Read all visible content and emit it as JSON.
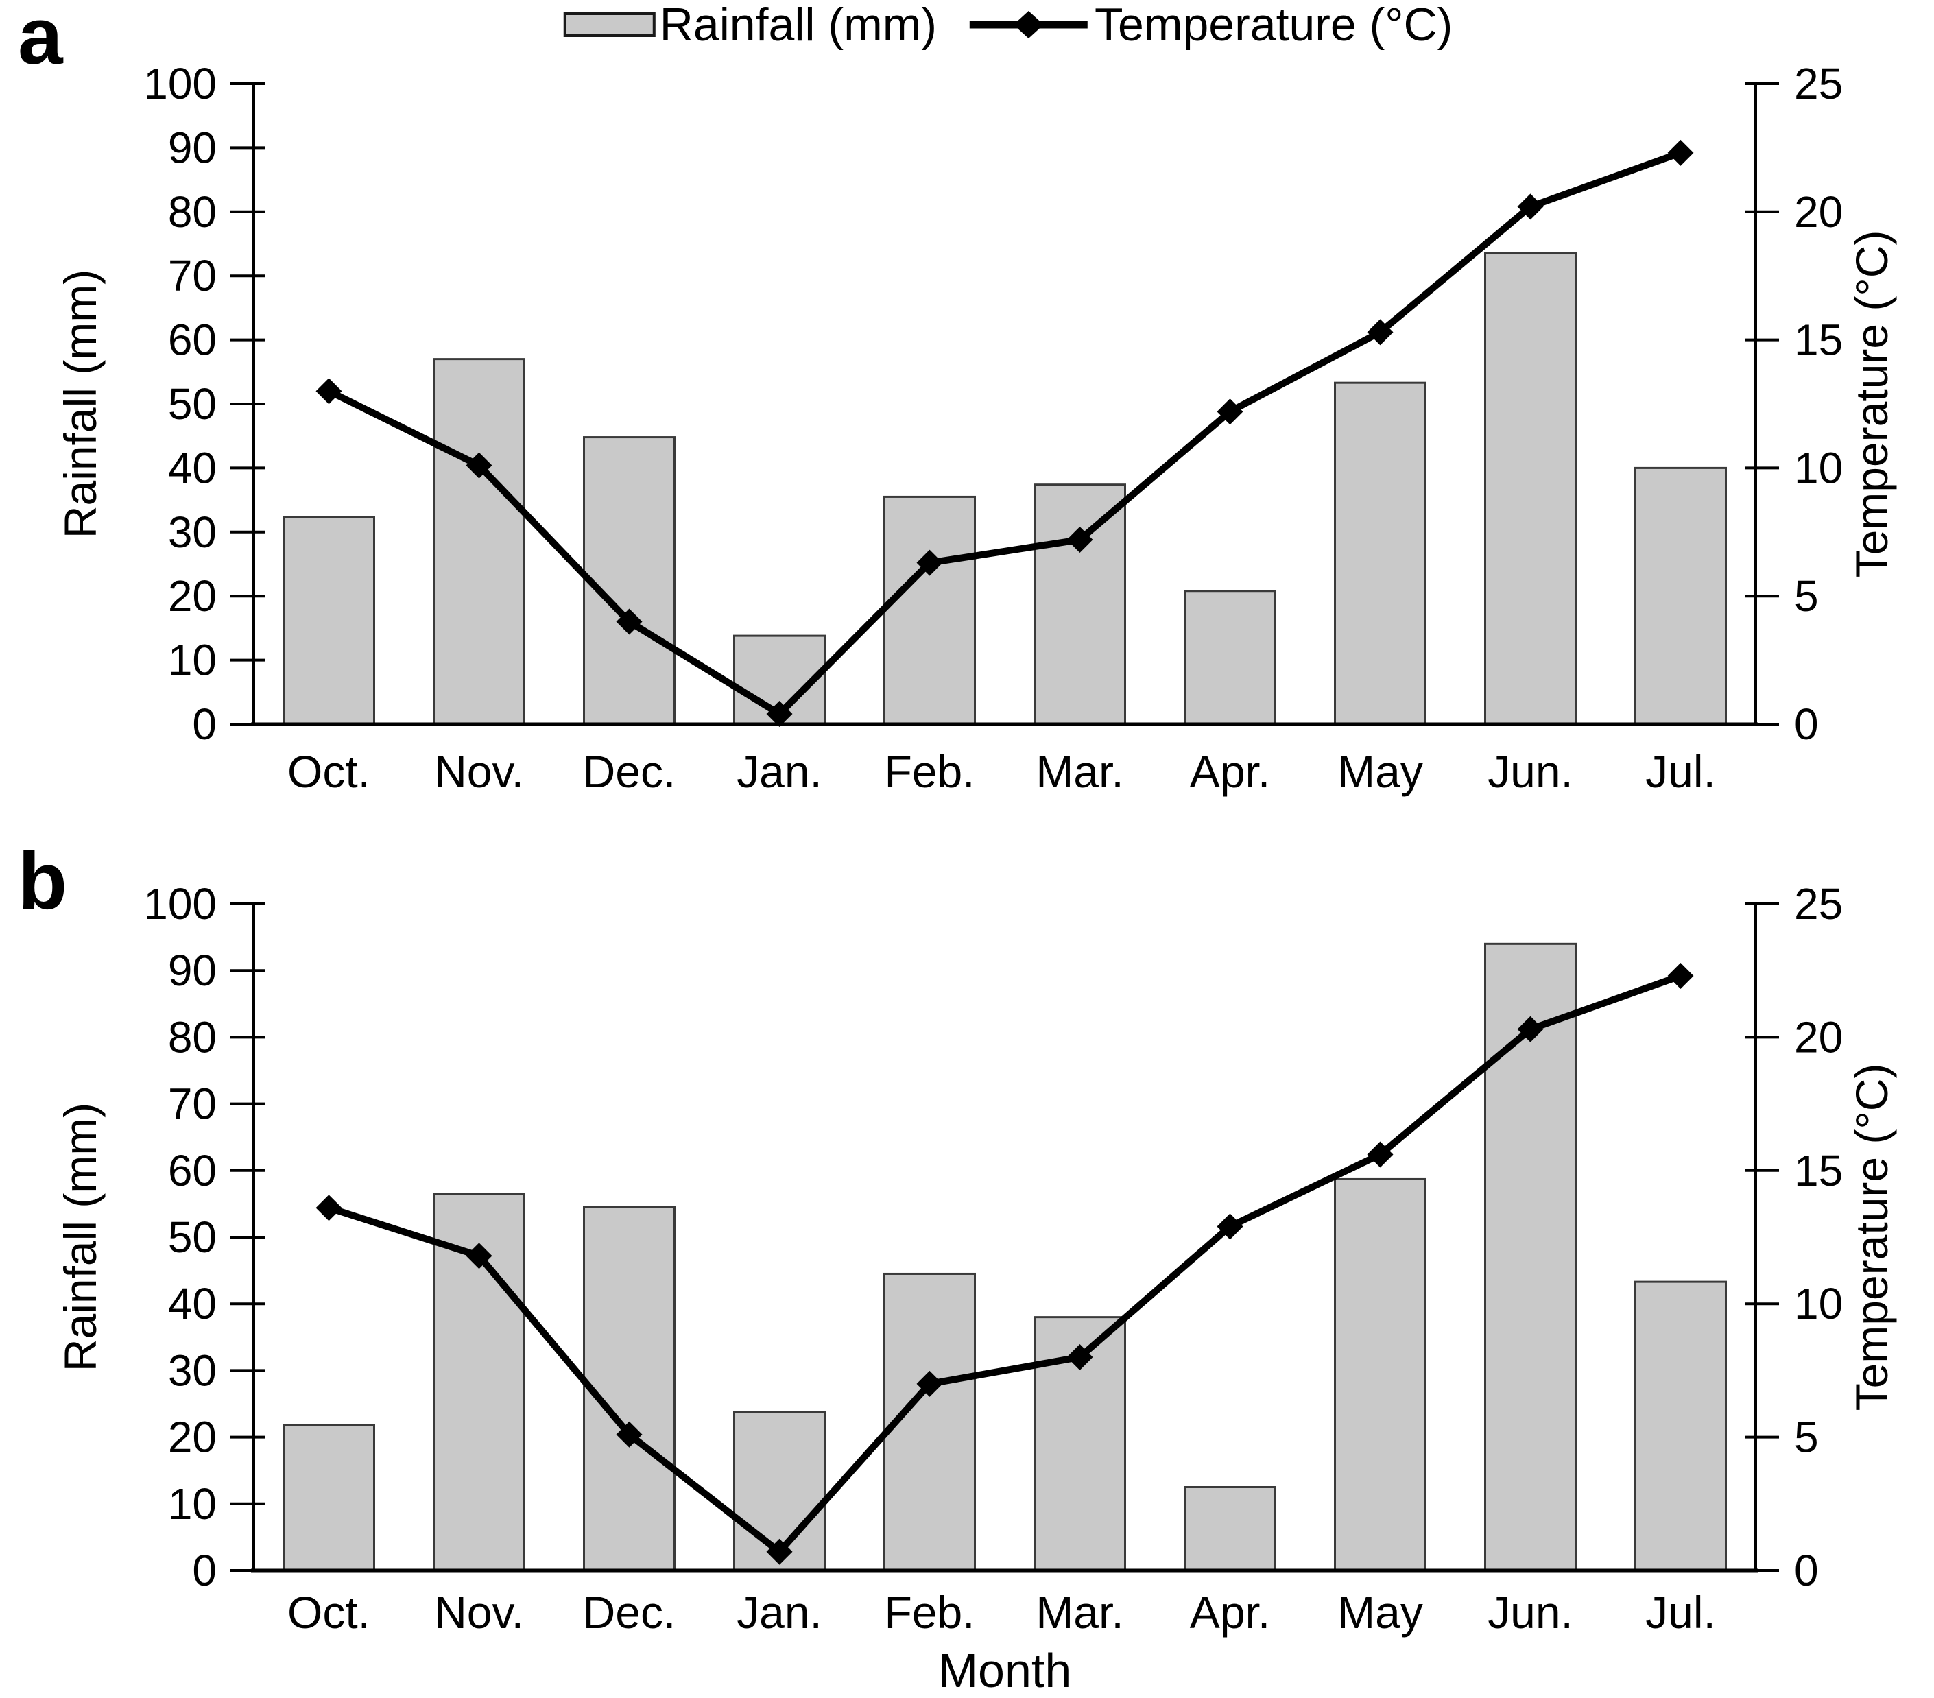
{
  "legend": {
    "rainfall_label": "Rainfall (mm)",
    "temperature_label": "Temperature (°C)"
  },
  "style": {
    "bar_fill": "#c9c9c9",
    "bar_stroke": "#3a3a3a",
    "line_color": "#000000",
    "axis_color": "#000000",
    "text_color": "#000000",
    "background": "#ffffff"
  },
  "chart_data": [
    {
      "panel": "a",
      "type": "bar",
      "subtype": "bar+line dual axis",
      "categories": [
        "Oct.",
        "Nov.",
        "Dec.",
        "Jan.",
        "Feb.",
        "Mar.",
        "Apr.",
        "May",
        "Jun.",
        "Jul."
      ],
      "series": [
        {
          "name": "Rainfall (mm)",
          "type": "bar",
          "axis": "left",
          "values": [
            32.3,
            57.0,
            44.8,
            13.8,
            35.5,
            37.4,
            20.8,
            53.3,
            73.5,
            40.0
          ]
        },
        {
          "name": "Temperature (°C)",
          "type": "line",
          "axis": "right",
          "marker": "diamond",
          "values": [
            13.0,
            10.1,
            4.0,
            0.4,
            6.3,
            7.2,
            12.2,
            15.3,
            20.2,
            22.3
          ]
        }
      ],
      "xlabel": "",
      "ylabel_left": "Rainfall (mm)",
      "ylabel_right": "Temperature (°C)",
      "ylim_left": [
        0,
        100
      ],
      "ytick_step_left": 10,
      "ylim_right": [
        0,
        25
      ],
      "ytick_step_right": 5,
      "grid": false,
      "legend_position": "top-center"
    },
    {
      "panel": "b",
      "type": "bar",
      "subtype": "bar+line dual axis",
      "categories": [
        "Oct.",
        "Nov.",
        "Dec.",
        "Jan.",
        "Feb.",
        "Mar.",
        "Apr.",
        "May",
        "Jun.",
        "Jul."
      ],
      "series": [
        {
          "name": "Rainfall (mm)",
          "type": "bar",
          "axis": "left",
          "values": [
            21.8,
            56.5,
            54.5,
            23.8,
            44.5,
            38.0,
            12.5,
            58.7,
            94.0,
            43.3
          ]
        },
        {
          "name": "Temperature (°C)",
          "type": "line",
          "axis": "right",
          "marker": "diamond",
          "values": [
            13.6,
            11.8,
            5.1,
            0.7,
            7.0,
            8.0,
            12.9,
            15.6,
            20.3,
            22.3
          ]
        }
      ],
      "xlabel": "Month",
      "ylabel_left": "Rainfall (mm)",
      "ylabel_right": "Temperature (°C)",
      "ylim_left": [
        0,
        100
      ],
      "ytick_step_left": 10,
      "ylim_right": [
        0,
        25
      ],
      "ytick_step_right": 5,
      "grid": false,
      "legend_position": "top-center"
    }
  ]
}
